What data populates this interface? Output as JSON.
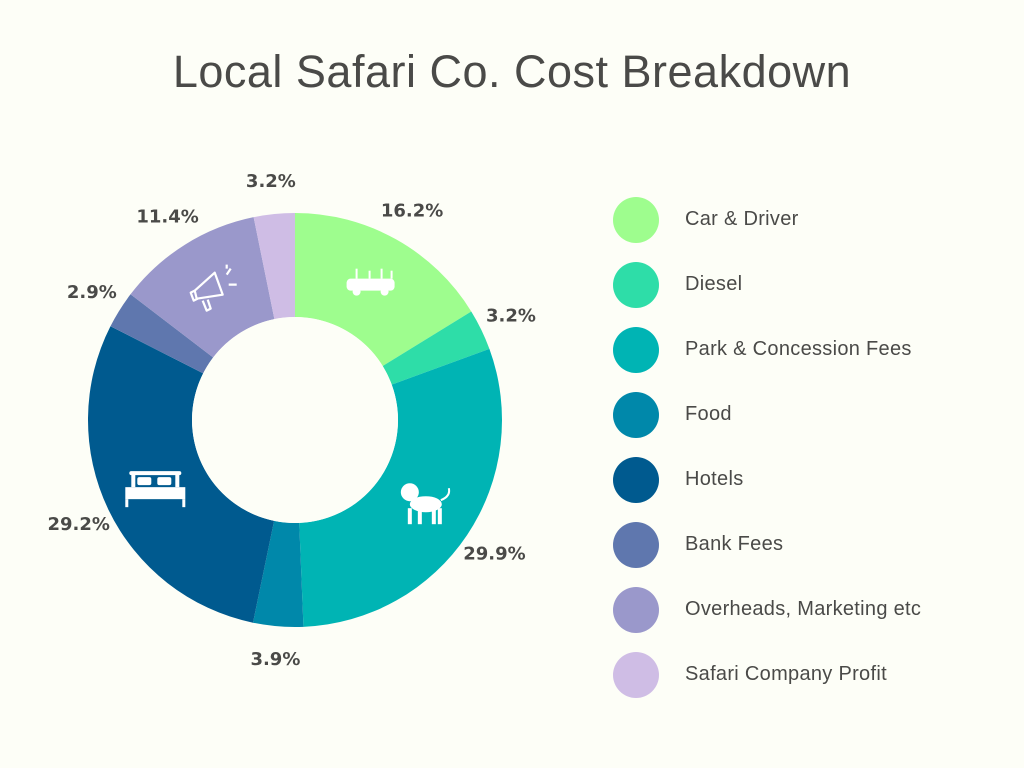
{
  "chart_data": {
    "type": "pie",
    "donut": true,
    "title": "Local Safari Co. Cost Breakdown",
    "categories": [
      "Car & Driver",
      "Diesel",
      "Park & Concession Fees",
      "Food",
      "Hotels",
      "Bank Fees",
      "Overheads, Marketing etc",
      "Safari Company Profit"
    ],
    "values": [
      16.2,
      3.2,
      29.9,
      3.9,
      29.2,
      2.9,
      11.4,
      3.2
    ],
    "labels": [
      "16.2%",
      "3.2%",
      "29.9%",
      "3.9%",
      "29.2%",
      "2.9%",
      "11.4%",
      "3.2%"
    ],
    "colors": [
      "#9EFD8E",
      "#2EDDA8",
      "#00B4B4",
      "#0088AA",
      "#005A8F",
      "#5F77AE",
      "#9A98CB",
      "#CFBDE5"
    ],
    "icons": [
      "car-icon",
      null,
      "lion-icon",
      null,
      "bed-icon",
      null,
      "megaphone-icon",
      null
    ],
    "legend_position": "right",
    "start_angle": "top, clockwise"
  }
}
